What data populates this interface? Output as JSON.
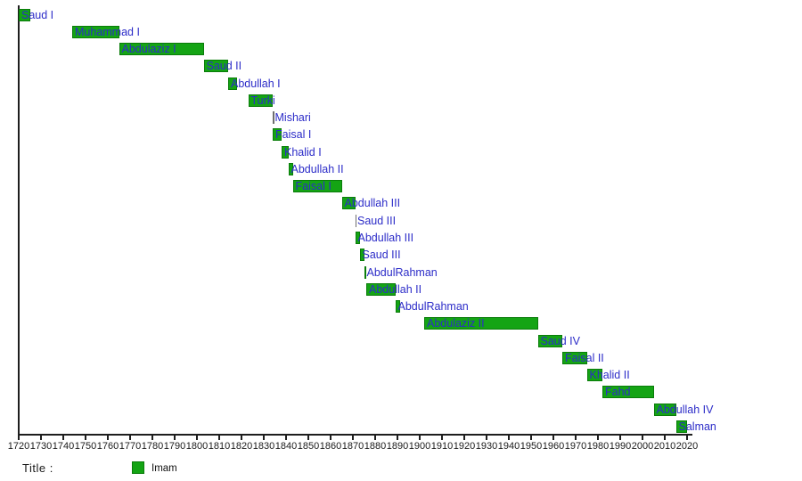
{
  "chart_data": {
    "type": "bar",
    "subtype": "timeline-gantt",
    "title": "",
    "xlabel": "",
    "ylabel": "",
    "series": [
      {
        "name": "Imam"
      }
    ],
    "x_axis": {
      "min": 1720,
      "max": 2020,
      "tick_step": 10
    },
    "x_ticks": [
      1720,
      1730,
      1740,
      1750,
      1760,
      1770,
      1780,
      1790,
      1800,
      1810,
      1820,
      1830,
      1840,
      1850,
      1860,
      1870,
      1880,
      1890,
      1900,
      1910,
      1920,
      1930,
      1940,
      1950,
      1960,
      1970,
      1980,
      1990,
      2000,
      2010,
      2020
    ],
    "legend_position": "bottom",
    "grid": false,
    "bars": [
      {
        "label": "Saud I",
        "start": 1720,
        "end": 1725,
        "thin": false
      },
      {
        "label": "Muhammad I",
        "start": 1744,
        "end": 1765,
        "thin": false
      },
      {
        "label": "Abdulaziz I",
        "start": 1765,
        "end": 1803,
        "thin": false
      },
      {
        "label": "Saud II",
        "start": 1803,
        "end": 1814,
        "thin": false
      },
      {
        "label": "Abdullah I",
        "start": 1814,
        "end": 1818,
        "thin": false
      },
      {
        "label": "Turki",
        "start": 1823,
        "end": 1834,
        "thin": false
      },
      {
        "label": "Mishari",
        "start": 1834,
        "end": 1834,
        "thin": true
      },
      {
        "label": "Faisal I",
        "start": 1834,
        "end": 1838,
        "thin": false
      },
      {
        "label": "Khalid I",
        "start": 1838,
        "end": 1841,
        "thin": false
      },
      {
        "label": "Abdullah II",
        "start": 1841,
        "end": 1843,
        "thin": false
      },
      {
        "label": "Faisal I",
        "start": 1843,
        "end": 1865,
        "thin": false
      },
      {
        "label": "Abdullah III",
        "start": 1865,
        "end": 1871,
        "thin": false
      },
      {
        "label": "Saud III",
        "start": 1871,
        "end": 1871,
        "thin": true
      },
      {
        "label": "Abdullah III",
        "start": 1871,
        "end": 1873,
        "thin": false
      },
      {
        "label": "Saud III",
        "start": 1873,
        "end": 1875,
        "thin": false
      },
      {
        "label": "AbdulRahman",
        "start": 1875,
        "end": 1876,
        "thin": false
      },
      {
        "label": "Abdullah II",
        "start": 1876,
        "end": 1889,
        "thin": false
      },
      {
        "label": "AbdulRahman",
        "start": 1889,
        "end": 1891,
        "thin": false
      },
      {
        "label": "Abdulaziz II",
        "start": 1902,
        "end": 1953,
        "thin": false
      },
      {
        "label": "Saud IV",
        "start": 1953,
        "end": 1964,
        "thin": false
      },
      {
        "label": "Faisal II",
        "start": 1964,
        "end": 1975,
        "thin": false
      },
      {
        "label": "Khalid II",
        "start": 1975,
        "end": 1982,
        "thin": false
      },
      {
        "label": "Fahd",
        "start": 1982,
        "end": 2005,
        "thin": false
      },
      {
        "label": "Abdullah IV",
        "start": 2005,
        "end": 2015,
        "thin": false
      },
      {
        "label": "Salman",
        "start": 2015,
        "end": 2020,
        "thin": false
      }
    ]
  },
  "legend": {
    "title_label": "Title :",
    "series_label": "Imam"
  },
  "colors": {
    "bar_fill": "#14a414",
    "bar_border": "#0a7c0a",
    "bar_label_blue": "#2c2cc8",
    "axis_black": "#1e1e1e",
    "thin_bar_gray": "#6e6e6e",
    "background": "#ffffff"
  }
}
